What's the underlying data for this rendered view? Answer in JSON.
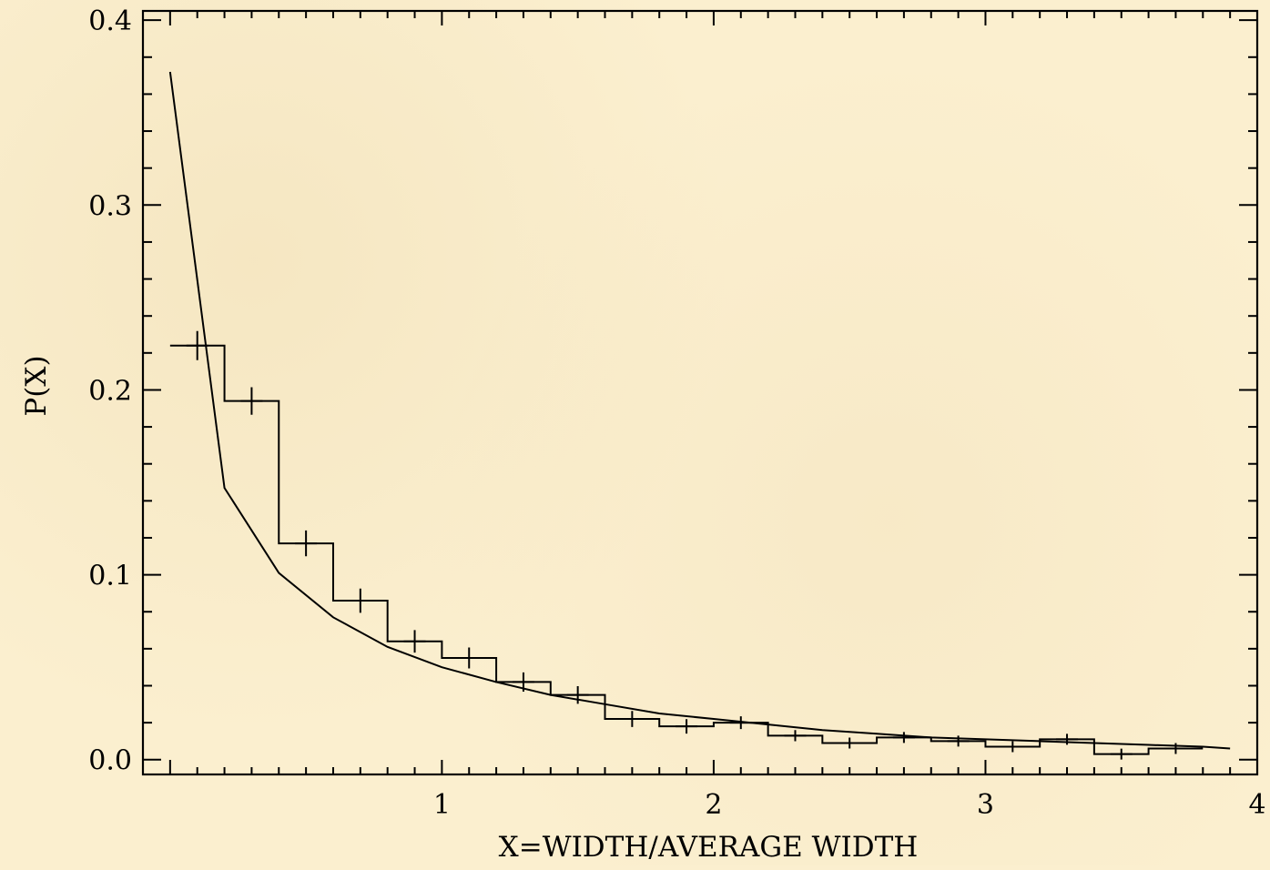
{
  "chart_data": {
    "type": "line",
    "title": "",
    "xlabel": "X=WIDTH/AVERAGE WIDTH",
    "ylabel": "P(X)",
    "xlim": [
      -0.1,
      4.0
    ],
    "ylim": [
      -0.008,
      0.405
    ],
    "x_ticks": [
      {
        "value": 1,
        "label": "1"
      },
      {
        "value": 2,
        "label": "2"
      },
      {
        "value": 3,
        "label": "3"
      },
      {
        "value": 4,
        "label": "4"
      }
    ],
    "y_ticks": [
      {
        "value": 0.0,
        "label": "0.0"
      },
      {
        "value": 0.1,
        "label": "0.1"
      },
      {
        "value": 0.2,
        "label": "0.2"
      },
      {
        "value": 0.3,
        "label": "0.3"
      },
      {
        "value": 0.4,
        "label": "0.4"
      }
    ],
    "grid": false,
    "series": [
      {
        "kind": "histogram-step",
        "bin_width": 0.2,
        "x": [
          0.0,
          0.2,
          0.4,
          0.6,
          0.8,
          1.0,
          1.2,
          1.4,
          1.6,
          1.8,
          2.0,
          2.2,
          2.4,
          2.6,
          2.8,
          3.0,
          3.2,
          3.4,
          3.6
        ],
        "values": [
          0.224,
          0.194,
          0.117,
          0.086,
          0.064,
          0.055,
          0.042,
          0.035,
          0.022,
          0.018,
          0.02,
          0.013,
          0.009,
          0.012,
          0.01,
          0.007,
          0.011,
          0.003,
          0.006
        ]
      },
      {
        "kind": "fit-curve",
        "x": [
          0.0,
          0.2,
          0.4,
          0.6,
          0.8,
          1.0,
          1.2,
          1.4,
          1.6,
          1.8,
          2.0,
          2.2,
          2.4,
          2.6,
          2.8,
          3.0,
          3.2,
          3.4,
          3.6,
          3.8,
          3.9
        ],
        "values": [
          0.372,
          0.147,
          0.101,
          0.077,
          0.061,
          0.05,
          0.042,
          0.035,
          0.03,
          0.025,
          0.022,
          0.019,
          0.016,
          0.014,
          0.012,
          0.011,
          0.01,
          0.009,
          0.008,
          0.007,
          0.006
        ]
      }
    ]
  }
}
